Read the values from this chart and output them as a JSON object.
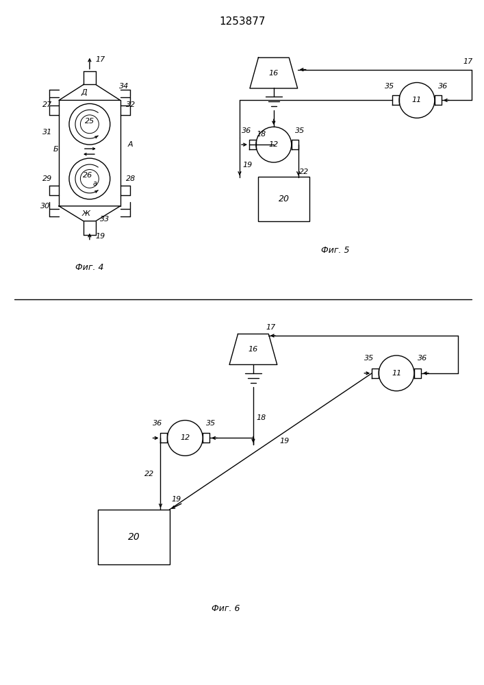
{
  "title": "1253877",
  "fig4_label": "Фиг. 4",
  "fig5_label": "Фиг. 5",
  "fig6_label": "Фиг. 6",
  "bg_color": "#ffffff",
  "line_color": "#000000"
}
